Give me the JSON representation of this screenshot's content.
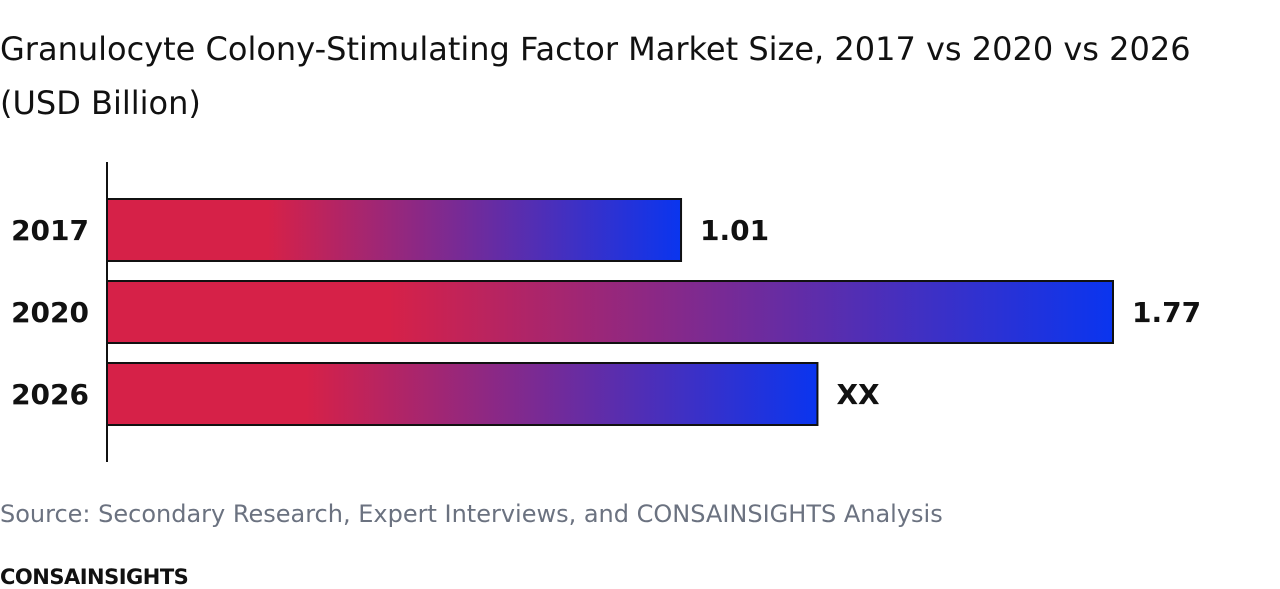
{
  "title": "Granulocyte Colony-Stimulating Factor Market Size, 2017 vs 2020 vs 2026 (USD Billion)",
  "source": "Source: Secondary Research, Expert Interviews, and CONSAINSIGHTS Analysis",
  "brand": "CONSAINSIGHTS",
  "colors": {
    "gradient_start": "#d62148",
    "gradient_end": "#0a35ef",
    "bar_stroke": "#111111",
    "axis": "#111111",
    "text": "#111111"
  },
  "chart_data": {
    "type": "bar",
    "orientation": "horizontal",
    "categories": [
      "2017",
      "2020",
      "2026"
    ],
    "values": [
      1.01,
      1.77,
      1.25
    ],
    "value_labels": [
      "1.01",
      "1.77",
      "XX"
    ],
    "title": "Granulocyte Colony-Stimulating Factor Market Size, 2017 vs 2020 vs 2026 (USD Billion)",
    "xlabel": "",
    "ylabel": "",
    "xlim": [
      0,
      1.77
    ],
    "grid": false,
    "legend": "none"
  }
}
